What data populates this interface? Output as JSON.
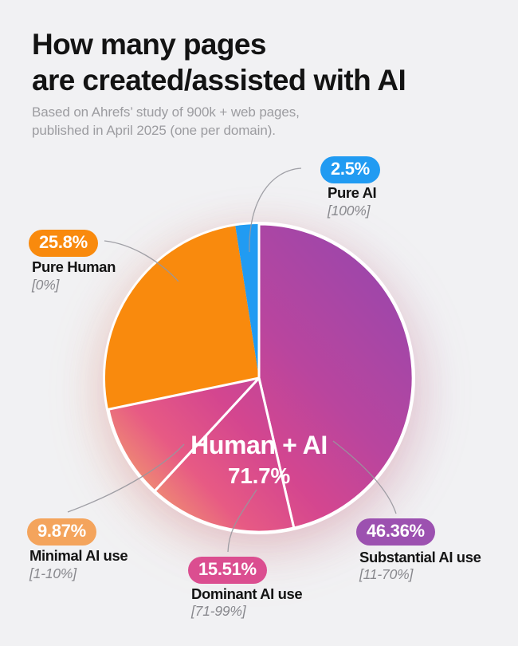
{
  "header": {
    "title": "How many pages\nare created/assisted with AI",
    "subtitle": "Based on Ahrefs’ study of 900k + web pages,\npublished in April 2025 (one per domain)."
  },
  "chart_data": {
    "type": "pie",
    "title": "How many pages are created/assisted with AI",
    "source_note": "Based on Ahrefs’ study of 900k + web pages, published in April 2025 (one per domain).",
    "start_angle_deg": 0,
    "direction": "clockwise",
    "center_label": {
      "label": "Human + AI",
      "value": 71.7,
      "value_text": "71.7%"
    },
    "group_gradient": [
      "#9747AD",
      "#D4468F",
      "#F3A76A"
    ],
    "segments": [
      {
        "label": "Substantial AI use",
        "ai_share_range": "[11-70%]",
        "value": 46.36,
        "badge_text": "46.36%",
        "badge_color": "#9C51B0",
        "color": "gradient",
        "in_human_ai_group": true
      },
      {
        "label": "Dominant AI use",
        "ai_share_range": "[71-99%]",
        "value": 15.51,
        "badge_text": "15.51%",
        "badge_color": "#DB4E90",
        "color": "gradient",
        "in_human_ai_group": true
      },
      {
        "label": "Minimal AI use",
        "ai_share_range": "[1-10%]",
        "value": 9.87,
        "badge_text": "9.87%",
        "badge_color": "#F4A45C",
        "color": "gradient",
        "in_human_ai_group": true
      },
      {
        "label": "Pure Human",
        "ai_share_range": "[0%]",
        "value": 25.8,
        "badge_text": "25.8%",
        "badge_color": "#F98A0D",
        "color": "#F98A0D",
        "in_human_ai_group": false
      },
      {
        "label": "Pure AI",
        "ai_share_range": "[100%]",
        "value": 2.5,
        "badge_text": "2.5%",
        "badge_color": "#219BF2",
        "color": "#219BF2",
        "in_human_ai_group": false
      }
    ]
  }
}
